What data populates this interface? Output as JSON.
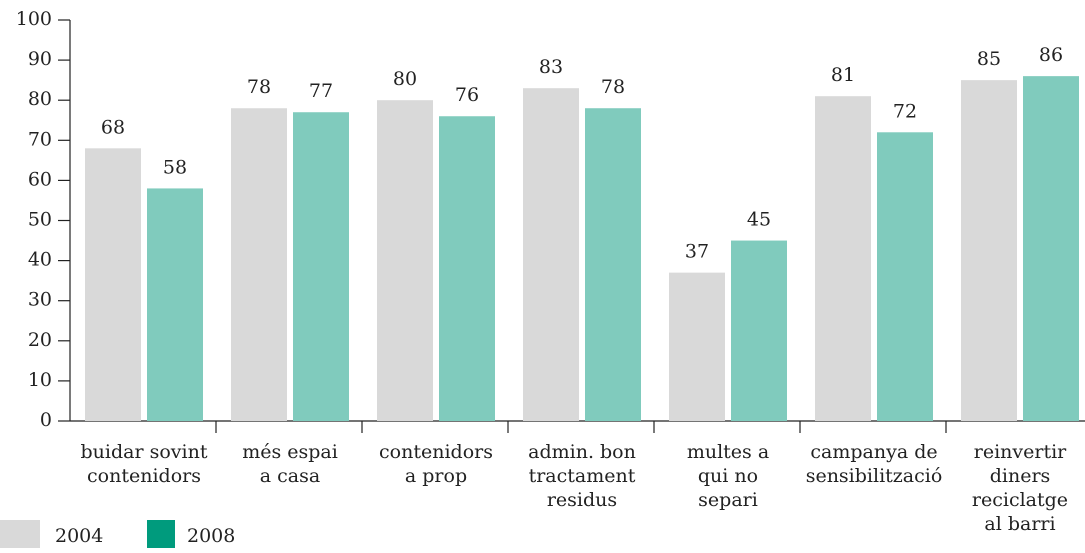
{
  "chart_data": {
    "type": "bar",
    "categories": [
      [
        "buidar sovint",
        "contenidors"
      ],
      [
        "més espai",
        "a casa"
      ],
      [
        "contenidors",
        "a prop"
      ],
      [
        "admin. bon",
        "tractament",
        "residus"
      ],
      [
        "multes a",
        "qui no",
        "separi"
      ],
      [
        "campanya de",
        "sensibilització"
      ],
      [
        "reinvertir",
        "diners",
        "reciclatge",
        "al barri"
      ]
    ],
    "series": [
      {
        "name": "2004",
        "color": "#d9d9d9",
        "legend_color": "#d9d9d9",
        "values": [
          68,
          78,
          80,
          83,
          37,
          81,
          85
        ]
      },
      {
        "name": "2008",
        "color": "#80cbbd",
        "legend_color": "#009b7d",
        "values": [
          58,
          77,
          76,
          78,
          45,
          72,
          86
        ]
      }
    ],
    "ylim": [
      0,
      100
    ],
    "yticks": [
      0,
      10,
      20,
      30,
      40,
      50,
      60,
      70,
      80,
      90,
      100
    ],
    "legend": "bottom-left"
  }
}
